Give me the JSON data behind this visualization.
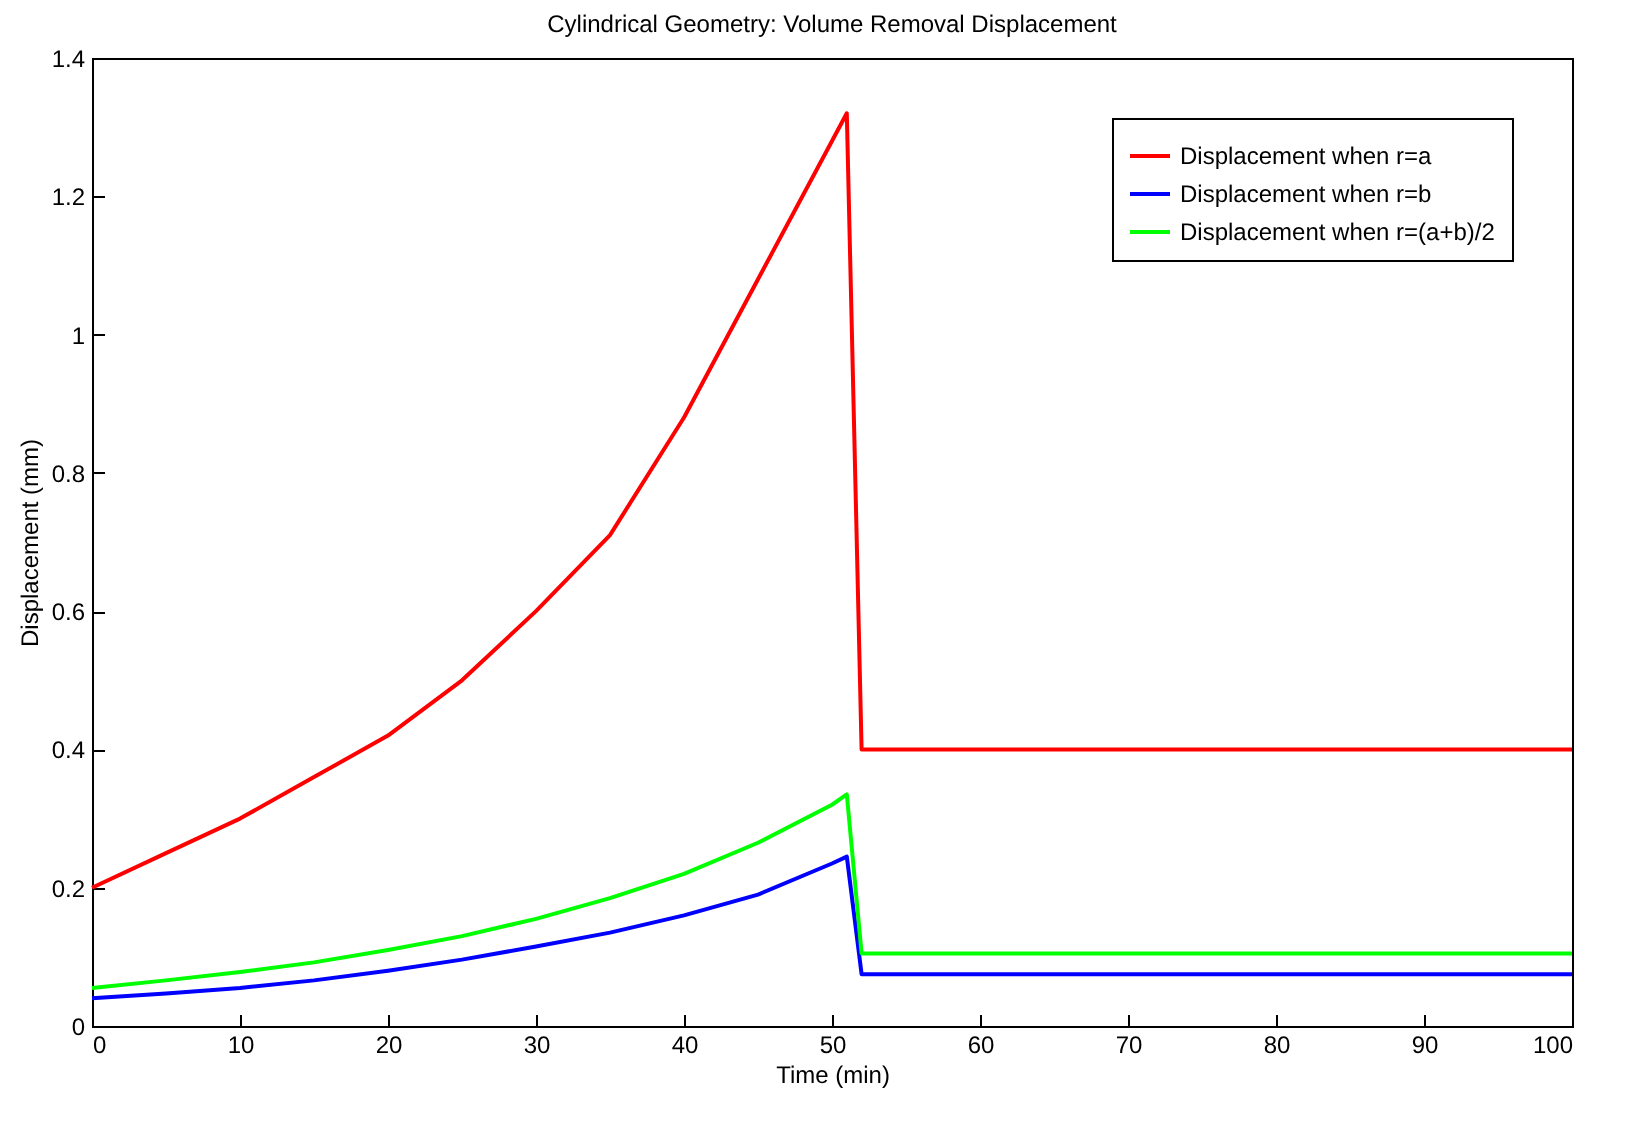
{
  "chart_data": {
    "type": "line",
    "title": "Cylindrical Geometry: Volume Removal Displacement",
    "xlabel": "Time (min)",
    "ylabel": "Displacement (mm)",
    "x": [
      0,
      5,
      10,
      15,
      20,
      25,
      30,
      35,
      40,
      45,
      50,
      51,
      52,
      100
    ],
    "series": [
      {
        "name": "Displacement when r=a",
        "color": "#ff0000",
        "values": [
          0.2,
          0.25,
          0.3,
          0.36,
          0.42,
          0.5,
          0.6,
          0.71,
          0.88,
          1.08,
          1.28,
          1.32,
          0.4,
          0.4
        ]
      },
      {
        "name": "Displacement when r=b",
        "color": "#0000ff",
        "values": [
          0.04,
          0.047,
          0.055,
          0.066,
          0.08,
          0.096,
          0.115,
          0.135,
          0.16,
          0.19,
          0.235,
          0.245,
          0.075,
          0.075
        ]
      },
      {
        "name": "Displacement when r=(a+b)/2",
        "color": "#00ff00",
        "values": [
          0.055,
          0.066,
          0.078,
          0.092,
          0.11,
          0.13,
          0.155,
          0.185,
          0.22,
          0.265,
          0.32,
          0.335,
          0.105,
          0.105
        ]
      }
    ],
    "xlim": [
      0,
      100
    ],
    "xticks": [
      0,
      10,
      20,
      30,
      40,
      50,
      60,
      70,
      80,
      90,
      100
    ],
    "ylim": [
      0,
      1.4
    ],
    "yticks": [
      0,
      0.2,
      0.4,
      0.6,
      0.8,
      1,
      1.2,
      1.4
    ],
    "legend": "top right",
    "grid": false
  }
}
